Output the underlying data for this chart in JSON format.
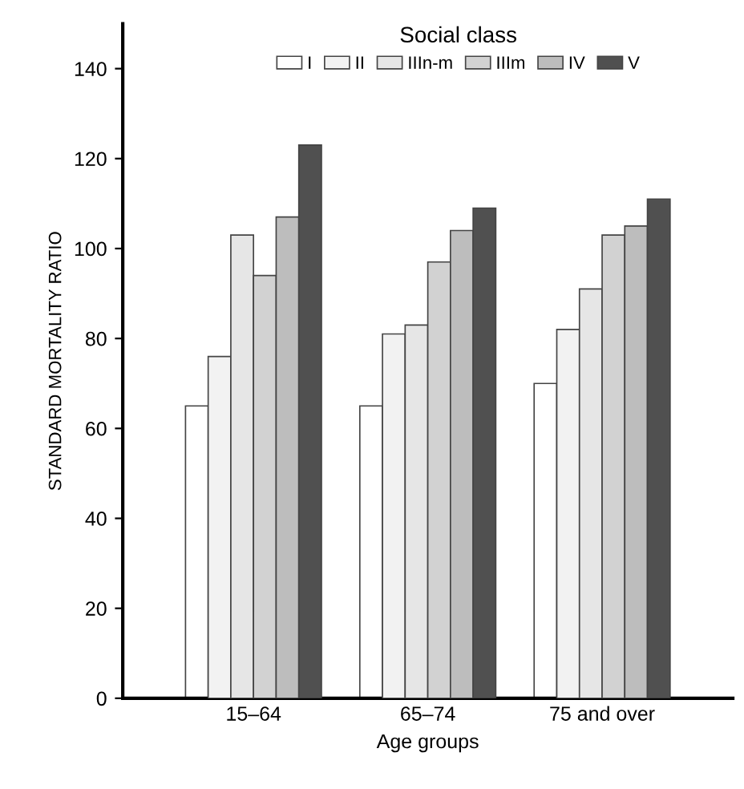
{
  "chart_data": {
    "type": "bar",
    "xlabel": "Age groups",
    "ylabel": "STANDARD MORTALITY RATIO",
    "legend_title": "Social class",
    "legend": "top",
    "categories": [
      "15–64",
      "65–74",
      "75 and over"
    ],
    "series": [
      {
        "name": "I",
        "color": "#ffffff",
        "values": [
          65,
          65,
          70
        ]
      },
      {
        "name": "II",
        "color": "#f2f2f2",
        "values": [
          76,
          81,
          82
        ]
      },
      {
        "name": "IIIn-m",
        "color": "#e6e6e6",
        "values": [
          103,
          83,
          91
        ]
      },
      {
        "name": "IIIm",
        "color": "#d2d2d2",
        "values": [
          94,
          97,
          103
        ]
      },
      {
        "name": "IV",
        "color": "#bdbdbd",
        "values": [
          107,
          104,
          105
        ]
      },
      {
        "name": "V",
        "color": "#505050",
        "values": [
          123,
          109,
          111
        ]
      }
    ],
    "ylim": [
      0,
      150
    ],
    "yticks": [
      0,
      20,
      40,
      60,
      80,
      100,
      120,
      140
    ],
    "grid": false
  }
}
